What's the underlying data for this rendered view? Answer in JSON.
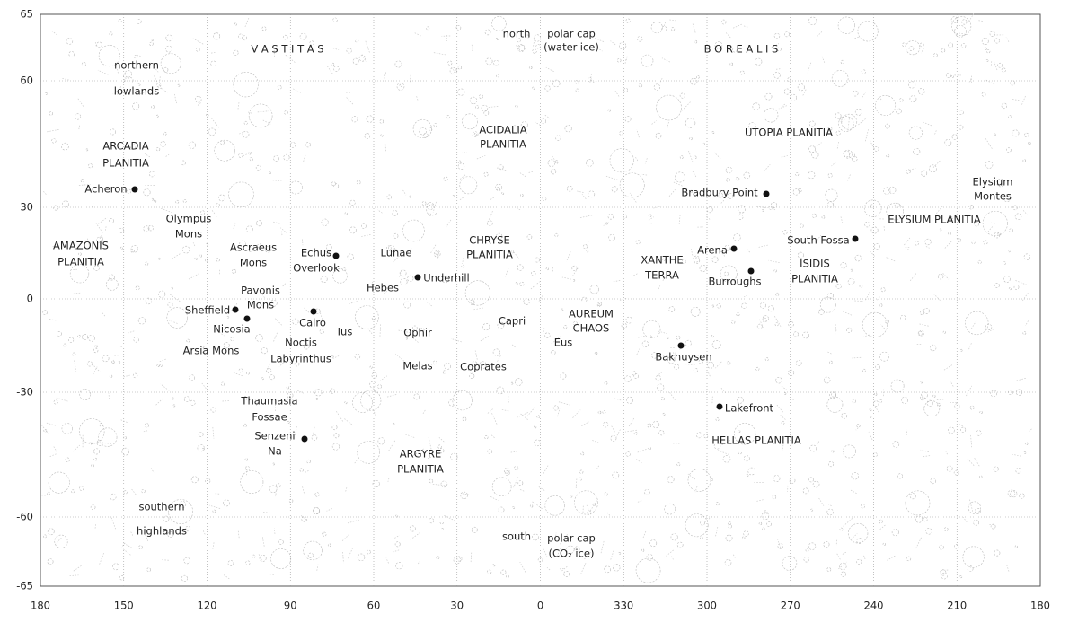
{
  "map": {
    "longitude_ticks": [
      "180",
      "150",
      "120",
      "90",
      "60",
      "30",
      "0",
      "330",
      "300",
      "270",
      "240",
      "210",
      "180"
    ],
    "latitude_ticks": [
      "65",
      "60",
      "30",
      "0",
      "-30",
      "-60",
      "-65"
    ],
    "labels": [
      [
        "V A S T I T A S"
      ],
      [
        "B O R E A L I S"
      ],
      [
        "north"
      ],
      [
        "polar cap",
        "(water-ice)"
      ],
      [
        "northern",
        "lowlands"
      ],
      [
        "ARCADIA",
        "PLANITIA"
      ],
      [
        "Acheron"
      ],
      [
        "Olympus",
        "Mons"
      ],
      [
        "AMAZONIS",
        "PLANITIA"
      ],
      [
        "Ascraeus",
        "Mons"
      ],
      [
        "Echus",
        "Overlook"
      ],
      [
        "Lunae"
      ],
      [
        "Underhill"
      ],
      [
        "CHRYSE",
        "PLANITIA"
      ],
      [
        "ACIDALIA",
        "PLANITIA"
      ],
      [
        "UTOPIA PLANITIA"
      ],
      [
        "Bradbury Point"
      ],
      [
        "Elysium",
        "Montes"
      ],
      [
        "ELYSIUM PLANITIA"
      ],
      [
        "South Fossa"
      ],
      [
        "Arena"
      ],
      [
        "XANTHE",
        "TERRA"
      ],
      [
        "Burroughs"
      ],
      [
        "ISIDIS",
        "PLANITIA"
      ],
      [
        "Pavonis",
        "Mons"
      ],
      [
        "Hebes"
      ],
      [
        "Sheffield"
      ],
      [
        "Nicosia"
      ],
      [
        "Cairo"
      ],
      [
        "Ius"
      ],
      [
        "Ophir"
      ],
      [
        "Capri"
      ],
      [
        "AUREUM",
        "CHAOS"
      ],
      [
        "Eus"
      ],
      [
        "Noctis",
        "Labyrinthus"
      ],
      [
        "Arsia Mons"
      ],
      [
        "Melas"
      ],
      [
        "Coprates"
      ],
      [
        "Bakhuysen"
      ],
      [
        "Thaumasia",
        "Fossae"
      ],
      [
        "Lakefront"
      ],
      [
        "HELLAS PLANITIA"
      ],
      [
        "Senzeni",
        "Na"
      ],
      [
        "ARGYRE",
        "PLANITIA"
      ],
      [
        "southern",
        "highlands"
      ],
      [
        "south"
      ],
      [
        "polar cap",
        "(CO₂ ice)"
      ]
    ]
  }
}
